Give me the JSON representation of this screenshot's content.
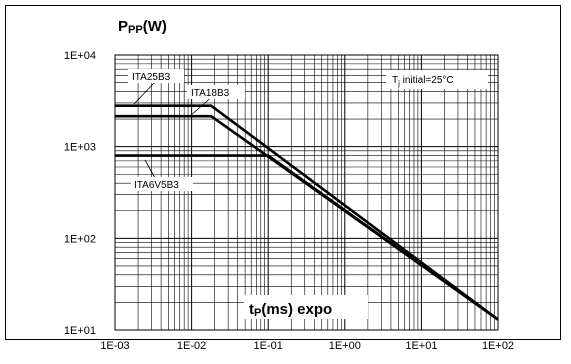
{
  "chart_data": {
    "type": "line",
    "scale": {
      "x": "log",
      "y": "log"
    },
    "xlim": [
      0.001,
      100
    ],
    "ylim": [
      10,
      10000
    ],
    "grid": true,
    "ylabel": {
      "main": "P",
      "sub": "PP",
      "unit": "(W)"
    },
    "xlabel": {
      "main": "t",
      "sub": "P",
      "unit": "(ms) expo"
    },
    "x_tick_labels": [
      "1E-03",
      "1E-02",
      "1E-01",
      "1E+00",
      "1E+01",
      "1E+02"
    ],
    "y_tick_labels": [
      "1E+01",
      "1E+02",
      "1E+03",
      "1E+04"
    ],
    "annotation": {
      "pre": "T",
      "sub": "j",
      "post": " initial=25°C"
    },
    "series": [
      {
        "name": "ITA25B3",
        "x": [
          0.001,
          0.018,
          100
        ],
        "y": [
          2800,
          2800,
          13
        ]
      },
      {
        "name": "ITA18B3",
        "x": [
          0.001,
          0.018,
          100
        ],
        "y": [
          2150,
          2150,
          13
        ]
      },
      {
        "name": "ITA6V5B3",
        "x": [
          0.001,
          0.1,
          100
        ],
        "y": [
          800,
          800,
          13
        ]
      }
    ]
  }
}
